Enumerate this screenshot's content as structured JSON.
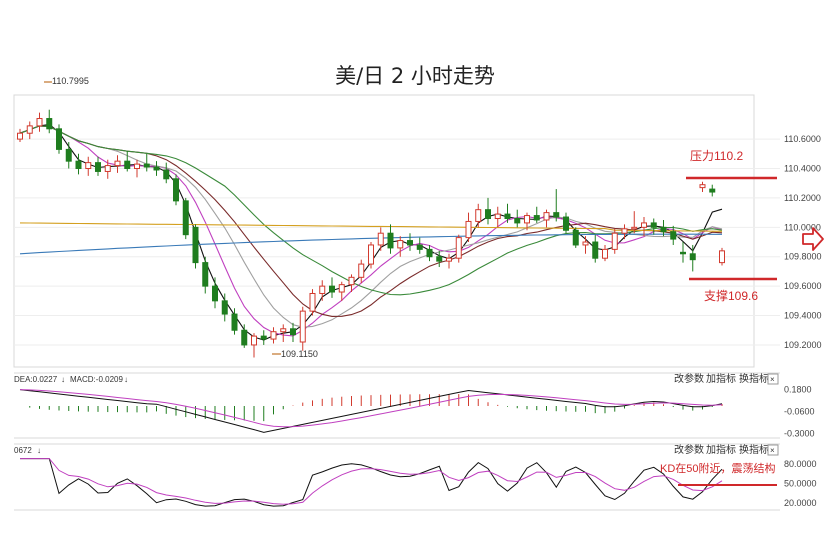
{
  "title": "美/日 2 小时走势",
  "colors": {
    "up": "#d23a2e",
    "down": "#1f7d1f",
    "ma_black": "#111111",
    "ma_magenta": "#c040c0",
    "ma_gray": "#a0a0a0",
    "ma_brown": "#7a2b2b",
    "ma_green": "#3a8a3a",
    "ma_orange": "#d4a020",
    "ma_blue": "#3a7ab8",
    "annotation_red": "#d0282a"
  },
  "toolbar": {
    "btn_params": "改参数",
    "btn_add": "加指标",
    "btn_switch": "换指标",
    "btn_close": "×"
  },
  "chart_data": [
    {
      "type": "candlestick",
      "title": "美/日 2 小时走势",
      "ylim": [
        109.05,
        110.9
      ],
      "yticks": [
        "110.6000",
        "110.4000",
        "110.2000",
        "110.0000",
        "109.8000",
        "109.6000",
        "109.4000",
        "109.2000"
      ],
      "tick_values": [
        110.6,
        110.4,
        110.2,
        110.0,
        109.8,
        109.6,
        109.4,
        109.2
      ],
      "high_label": "110.7995",
      "low_label": "109.1150",
      "candles": [
        [
          110.6,
          110.67,
          110.58,
          110.64
        ],
        [
          110.64,
          110.72,
          110.6,
          110.69
        ],
        [
          110.69,
          110.78,
          110.65,
          110.74
        ],
        [
          110.74,
          110.8,
          110.64,
          110.67
        ],
        [
          110.67,
          110.7,
          110.5,
          110.53
        ],
        [
          110.53,
          110.58,
          110.4,
          110.45
        ],
        [
          110.45,
          110.5,
          110.36,
          110.4
        ],
        [
          110.4,
          110.48,
          110.35,
          110.44
        ],
        [
          110.44,
          110.48,
          110.35,
          110.38
        ],
        [
          110.38,
          110.46,
          110.33,
          110.42
        ],
        [
          110.42,
          110.49,
          110.37,
          110.45
        ],
        [
          110.45,
          110.52,
          110.38,
          110.4
        ],
        [
          110.4,
          110.46,
          110.34,
          110.43
        ],
        [
          110.43,
          110.5,
          110.38,
          110.41
        ],
        [
          110.41,
          110.45,
          110.35,
          110.39
        ],
        [
          110.39,
          110.44,
          110.3,
          110.33
        ],
        [
          110.33,
          110.36,
          110.15,
          110.18
        ],
        [
          110.18,
          110.2,
          109.92,
          109.95
        ],
        [
          110.0,
          110.02,
          109.72,
          109.76
        ],
        [
          109.76,
          109.8,
          109.55,
          109.6
        ],
        [
          109.6,
          109.66,
          109.45,
          109.5
        ],
        [
          109.5,
          109.55,
          109.36,
          109.41
        ],
        [
          109.41,
          109.45,
          109.27,
          109.3
        ],
        [
          109.3,
          109.34,
          109.18,
          109.2
        ],
        [
          109.2,
          109.28,
          109.115,
          109.26
        ],
        [
          109.26,
          109.3,
          109.2,
          109.24
        ],
        [
          109.24,
          109.32,
          109.21,
          109.29
        ],
        [
          109.29,
          109.34,
          109.22,
          109.31
        ],
        [
          109.31,
          109.35,
          109.22,
          109.27
        ],
        [
          109.22,
          109.46,
          109.16,
          109.43
        ],
        [
          109.43,
          109.58,
          109.4,
          109.55
        ],
        [
          109.55,
          109.64,
          109.5,
          109.6
        ],
        [
          109.6,
          109.66,
          109.52,
          109.56
        ],
        [
          109.56,
          109.63,
          109.5,
          109.61
        ],
        [
          109.61,
          109.68,
          109.56,
          109.66
        ],
        [
          109.66,
          109.78,
          109.62,
          109.75
        ],
        [
          109.75,
          109.9,
          109.72,
          109.88
        ],
        [
          109.88,
          110.0,
          109.84,
          109.96
        ],
        [
          109.96,
          110.02,
          109.82,
          109.86
        ],
        [
          109.86,
          109.94,
          109.8,
          109.91
        ],
        [
          109.91,
          109.96,
          109.84,
          109.88
        ],
        [
          109.88,
          109.93,
          109.82,
          109.85
        ],
        [
          109.85,
          109.88,
          109.77,
          109.8
        ],
        [
          109.8,
          109.84,
          109.73,
          109.77
        ],
        [
          109.77,
          109.82,
          109.72,
          109.79
        ],
        [
          109.79,
          109.95,
          109.76,
          109.93
        ],
        [
          109.93,
          110.1,
          109.9,
          110.04
        ],
        [
          110.04,
          110.16,
          110.0,
          110.12
        ],
        [
          110.12,
          110.2,
          110.02,
          110.06
        ],
        [
          110.06,
          110.14,
          110.0,
          110.09
        ],
        [
          110.09,
          110.16,
          110.03,
          110.06
        ],
        [
          110.06,
          110.12,
          110.0,
          110.03
        ],
        [
          110.03,
          110.1,
          109.98,
          110.08
        ],
        [
          110.08,
          110.14,
          110.03,
          110.05
        ],
        [
          110.05,
          110.12,
          110.0,
          110.1
        ],
        [
          110.1,
          110.26,
          110.04,
          110.07
        ],
        [
          110.07,
          110.1,
          109.96,
          109.98
        ],
        [
          109.98,
          110.0,
          109.86,
          109.88
        ],
        [
          109.88,
          109.94,
          109.82,
          109.9
        ],
        [
          109.9,
          109.95,
          109.76,
          109.79
        ],
        [
          109.79,
          109.88,
          109.77,
          109.85
        ],
        [
          109.85,
          109.99,
          109.82,
          109.96
        ],
        [
          109.96,
          110.02,
          109.92,
          109.99
        ],
        [
          109.99,
          110.11,
          109.96,
          110.0
        ],
        [
          110.0,
          110.07,
          109.94,
          110.03
        ],
        [
          110.03,
          110.06,
          109.95,
          110.0
        ],
        [
          110.0,
          110.05,
          109.94,
          109.97
        ],
        [
          109.97,
          110.01,
          109.88,
          109.92
        ],
        [
          109.83,
          109.9,
          109.76,
          109.82
        ],
        [
          109.82,
          109.88,
          109.7,
          109.78
        ],
        [
          110.27,
          110.31,
          110.24,
          110.29
        ],
        [
          110.26,
          110.29,
          110.21,
          110.24
        ],
        [
          109.76,
          109.86,
          109.74,
          109.84
        ]
      ],
      "annotations": [
        "压力110.2",
        "支撑109.6"
      ],
      "reference_levels": [
        110.2,
        109.6
      ]
    },
    {
      "type": "line",
      "legend": [
        "DEA:0.0227",
        "MACD:-0.0209"
      ],
      "yticks": [
        "0.1800",
        "-0.0600",
        "-0.3000"
      ],
      "tick_values": [
        0.18,
        -0.06,
        -0.3
      ]
    },
    {
      "type": "line",
      "legend": [
        "0672"
      ],
      "yticks": [
        "80.0000",
        "50.0000",
        "20.0000"
      ],
      "tick_values": [
        80,
        50,
        20
      ],
      "annotation": "KD在50附近，震荡结构",
      "reference_level": 50
    }
  ]
}
